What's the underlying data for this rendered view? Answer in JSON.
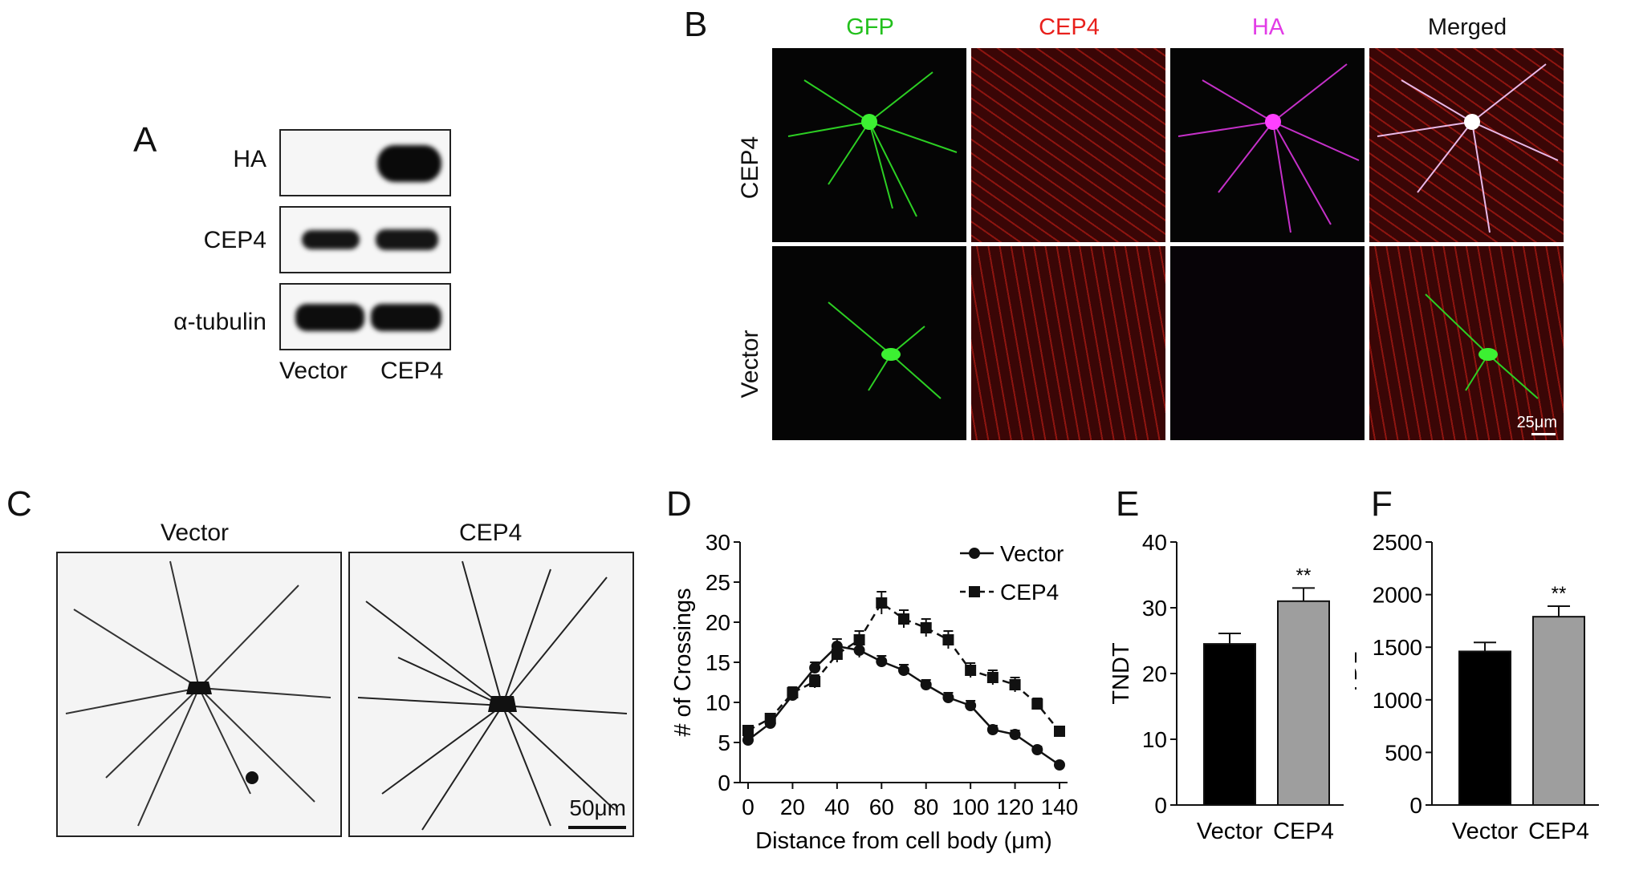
{
  "panels": {
    "A": {
      "letter": "A",
      "rows": [
        "HA",
        "CEP4",
        "α-tubulin"
      ],
      "lanes": [
        "Vector",
        "CEP4"
      ]
    },
    "B": {
      "letter": "B",
      "columns": [
        "GFP",
        "CEP4",
        "HA",
        "Merged"
      ],
      "rows": [
        "CEP4",
        "Vector"
      ],
      "scale_bar": "25μm",
      "colors": {
        "gfp": "#22c01c",
        "cep4": "#e8201c",
        "ha": "#e23ce6",
        "merged": "#111111"
      }
    },
    "C": {
      "letter": "C",
      "labels": [
        "Vector",
        "CEP4"
      ],
      "scale_bar": "50μm"
    },
    "D": {
      "letter": "D"
    },
    "E": {
      "letter": "E"
    },
    "F": {
      "letter": "F"
    }
  },
  "chart_data": [
    {
      "panel": "D",
      "type": "line",
      "xlabel": "Distance from cell body (μm)",
      "ylabel": "# of Crossings",
      "xlim": [
        0,
        140
      ],
      "ylim": [
        0,
        30
      ],
      "xticks": [
        "0",
        "20",
        "40",
        "60",
        "80",
        "100",
        "120",
        "140"
      ],
      "yticks": [
        "0",
        "5",
        "10",
        "15",
        "20",
        "25",
        "30"
      ],
      "x": [
        0,
        10,
        20,
        30,
        40,
        50,
        60,
        70,
        80,
        90,
        100,
        110,
        120,
        130,
        140
      ],
      "legend": "top-right",
      "series": [
        {
          "name": "Vector",
          "marker": "circle",
          "line": "solid",
          "values": [
            5.3,
            7.4,
            10.9,
            14.3,
            17.0,
            16.5,
            15.1,
            14.0,
            12.2,
            10.6,
            9.6,
            6.6,
            6.0,
            4.1,
            2.2
          ],
          "errors": [
            0.4,
            0.6,
            0.6,
            0.7,
            0.9,
            0.9,
            0.7,
            0.7,
            0.6,
            0.6,
            0.6,
            0.5,
            0.5,
            0.4,
            0.3
          ]
        },
        {
          "name": "CEP4",
          "marker": "square",
          "line": "dashed",
          "values": [
            6.5,
            8.0,
            11.2,
            12.6,
            16.0,
            17.8,
            22.4,
            20.4,
            19.3,
            17.8,
            14.0,
            13.1,
            12.2,
            9.8,
            6.4
          ],
          "errors": [
            0.5,
            0.6,
            0.7,
            0.8,
            1.0,
            1.1,
            1.4,
            1.1,
            1.1,
            1.1,
            0.9,
            0.9,
            0.9,
            0.7,
            0.5
          ]
        }
      ]
    },
    {
      "panel": "E",
      "type": "bar",
      "ylabel": "TNDT",
      "categories": [
        "Vector",
        "CEP4"
      ],
      "values": [
        24.5,
        31.0
      ],
      "errors": [
        1.6,
        2.0
      ],
      "ylim": [
        0,
        40
      ],
      "yticks": [
        "0",
        "10",
        "20",
        "30",
        "40"
      ],
      "significance": [
        "",
        "**"
      ],
      "colors": [
        "#000000",
        "#9e9e9e"
      ]
    },
    {
      "panel": "F",
      "type": "bar",
      "ylabel": "TDL",
      "categories": [
        "Vector",
        "CEP4"
      ],
      "values": [
        1460,
        1790
      ],
      "errors": [
        85,
        100
      ],
      "ylim": [
        0,
        2500
      ],
      "yticks": [
        "0",
        "500",
        "1000",
        "1500",
        "2000",
        "2500"
      ],
      "significance": [
        "",
        "**"
      ],
      "colors": [
        "#000000",
        "#9e9e9e"
      ]
    }
  ]
}
